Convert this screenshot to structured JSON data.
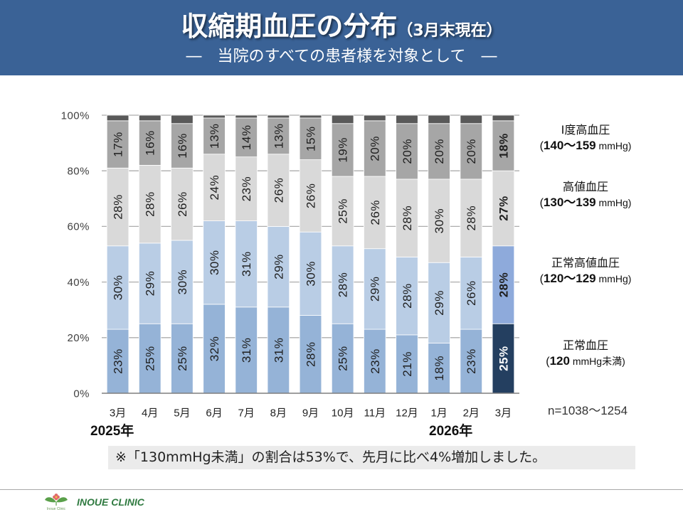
{
  "header": {
    "title": "収縮期血圧の分布",
    "title_note": "（3月末現在）",
    "subtitle": "―　当院のすべての患者様を対象として　―",
    "background_color": "#3a6296"
  },
  "chart_data": {
    "type": "bar",
    "stacked": true,
    "orientation": "vertical",
    "categories": [
      "3月",
      "4月",
      "5月",
      "6月",
      "7月",
      "8月",
      "9月",
      "10月",
      "11月",
      "12月",
      "1月",
      "2月",
      "3月"
    ],
    "year_labels": [
      {
        "label": "2025年",
        "category_index": 0
      },
      {
        "label": "2026年",
        "category_index": 10
      }
    ],
    "series": [
      {
        "name": "正常血圧",
        "range_open": "(",
        "range_value": "120",
        "range_rest": " mmHg未満)",
        "values": [
          23,
          25,
          25,
          32,
          31,
          31,
          28,
          25,
          23,
          21,
          18,
          23,
          25
        ],
        "color": "#95b3d7",
        "highlight_color": "#243f60",
        "highlight_label_color": "#ffffff"
      },
      {
        "name": "正常高値血圧",
        "range_open": "(",
        "range_value": "120〜129",
        "range_rest": " mmHg)",
        "values": [
          30,
          29,
          30,
          30,
          31,
          29,
          30,
          28,
          29,
          28,
          29,
          26,
          28
        ],
        "color": "#b9cde5",
        "highlight_color": "#8eaadb"
      },
      {
        "name": "高値血圧",
        "range_open": "(",
        "range_value": "130〜139",
        "range_rest": " mmHg)",
        "values": [
          28,
          28,
          26,
          24,
          23,
          26,
          26,
          25,
          26,
          28,
          30,
          28,
          27
        ],
        "color": "#d9d9d9"
      },
      {
        "name": "Ⅰ度高血圧",
        "range_open": "(",
        "range_value": "140〜159",
        "range_rest": " mmHg)",
        "values": [
          17,
          16,
          16,
          13,
          14,
          13,
          15,
          19,
          20,
          20,
          20,
          20,
          18
        ],
        "color": "#a6a6a6"
      },
      {
        "values": [
          2,
          2,
          3,
          1,
          1,
          1,
          1,
          3,
          2,
          3,
          3,
          3,
          2
        ],
        "color": "#595959",
        "show_labels": false
      }
    ],
    "ylim": [
      0,
      100
    ],
    "yticks": [
      0,
      20,
      40,
      60,
      80,
      100
    ],
    "value_suffix": "%",
    "highlight_index": 12,
    "grid": true,
    "legend": "right",
    "sample_size": "n=1038〜1254"
  },
  "note": "※「130mmHg未満」の割合は53%で、先月に比べ4%増加しました。",
  "footer": {
    "logo_text": "Inoue Clinic",
    "clinic_name": "INOUE CLINIC",
    "clinic_name_color": "#2f7a40"
  }
}
